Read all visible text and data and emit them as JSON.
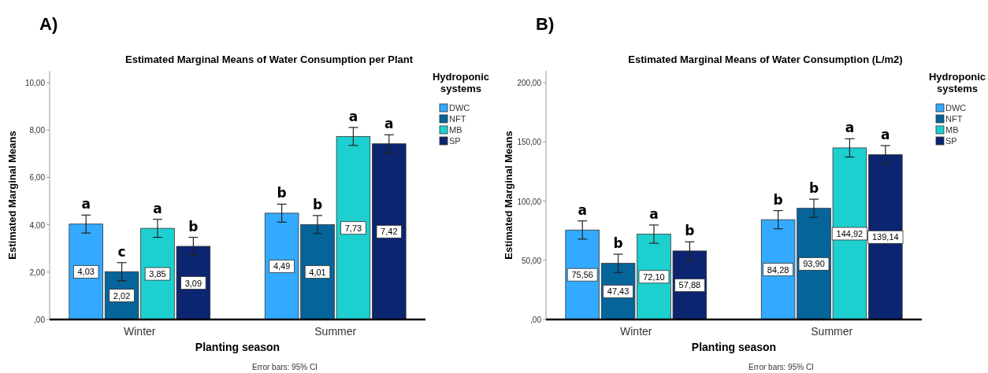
{
  "chart_data": [
    {
      "type": "bar",
      "title": "Estimated Marginal Means of Water Consumption per Plant",
      "xlabel": "Planting season",
      "ylabel": "Estimated Marginal Means",
      "legend_title": "Hydroponic systems",
      "legend": "right",
      "categories": [
        "Winter",
        "Summer"
      ],
      "ylim": [
        0,
        10.5
      ],
      "yticks": [
        {
          "value": 0,
          "label": ",00"
        },
        {
          "value": 2,
          "label": "2,00"
        },
        {
          "value": 4,
          "label": "4,00"
        },
        {
          "value": 6,
          "label": "6,00"
        },
        {
          "value": 8,
          "label": "8,00"
        },
        {
          "value": 10,
          "label": "10,00"
        }
      ],
      "series": [
        {
          "name": "DWC",
          "color": "#33aaff",
          "values": [
            4.03,
            4.49
          ],
          "errors": [
            0.38,
            0.38
          ],
          "value_labels": [
            "4,03",
            "4,49"
          ]
        },
        {
          "name": "NFT",
          "color": "#05649a",
          "values": [
            2.02,
            4.01
          ],
          "errors": [
            0.38,
            0.38
          ],
          "value_labels": [
            "2,02",
            "4,01"
          ]
        },
        {
          "name": "MB",
          "color": "#1ecfcf",
          "values": [
            3.85,
            7.73
          ],
          "errors": [
            0.38,
            0.38
          ],
          "value_labels": [
            "3,85",
            "7,73"
          ]
        },
        {
          "name": "SP",
          "color": "#0c2570",
          "values": [
            3.09,
            7.42
          ],
          "errors": [
            0.38,
            0.38
          ],
          "value_labels": [
            "3,09",
            "7,42"
          ]
        }
      ],
      "annotations": [
        "A)",
        "a",
        "c",
        "a",
        "b",
        "b",
        "b",
        "a",
        "a",
        "Error bars: 95% CI"
      ]
    },
    {
      "type": "bar",
      "title": "Estimated Marginal Means of Water Consumption (L/m2)",
      "xlabel": "Planting season",
      "ylabel": "Estimated Marginal Means",
      "legend_title": "Hydroponic systems",
      "legend": "right",
      "categories": [
        "Winter",
        "Summer"
      ],
      "ylim": [
        0,
        210
      ],
      "yticks": [
        {
          "value": 0,
          "label": ",00"
        },
        {
          "value": 50,
          "label": "50,00"
        },
        {
          "value": 100,
          "label": "100,00"
        },
        {
          "value": 150,
          "label": "150,00"
        },
        {
          "value": 200,
          "label": "200,00"
        }
      ],
      "series": [
        {
          "name": "DWC",
          "color": "#33aaff",
          "values": [
            75.56,
            84.28
          ],
          "errors": [
            7.7,
            7.7
          ],
          "value_labels": [
            "75,56",
            "84,28"
          ]
        },
        {
          "name": "NFT",
          "color": "#05649a",
          "values": [
            47.43,
            93.9
          ],
          "errors": [
            7.7,
            7.7
          ],
          "value_labels": [
            "47,43",
            "93,90"
          ]
        },
        {
          "name": "MB",
          "color": "#1ecfcf",
          "values": [
            72.1,
            144.92
          ],
          "errors": [
            7.7,
            7.7
          ],
          "value_labels": [
            "72,10",
            "144,92"
          ]
        },
        {
          "name": "SP",
          "color": "#0c2570",
          "values": [
            57.88,
            139.14
          ],
          "errors": [
            7.7,
            7.7
          ],
          "value_labels": [
            "57,88",
            "139,14"
          ]
        }
      ],
      "annotations": [
        "B)",
        "a",
        "b",
        "a",
        "b",
        "b",
        "b",
        "a",
        "a",
        "Error bars: 95% CI"
      ]
    }
  ]
}
